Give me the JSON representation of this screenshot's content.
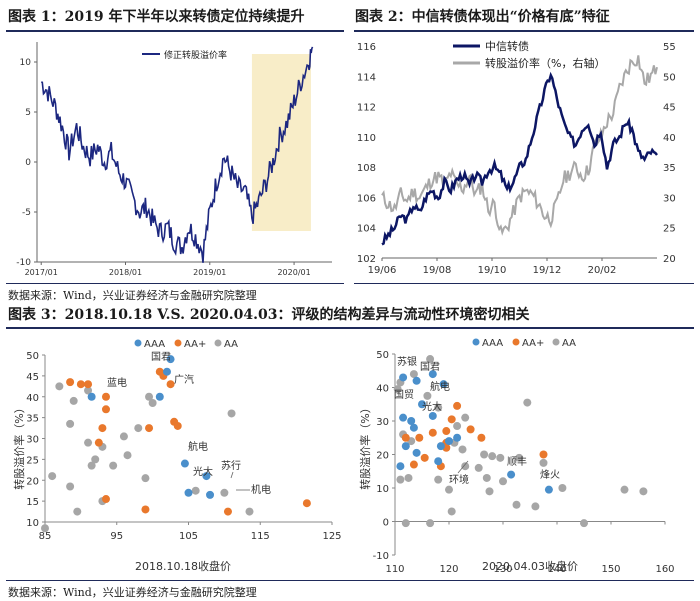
{
  "figure1": {
    "title": "图表 1：2019 年下半年以来转债定位持续提升",
    "chart_data": {
      "type": "line",
      "title": "",
      "legend": [
        "修正转股溢价率"
      ],
      "x_ticks": [
        "2017/01",
        "2018/01",
        "2019/01",
        "2020/01"
      ],
      "y_ticks": [
        "10",
        "5",
        "0",
        "-5",
        "-10"
      ],
      "ylim": [
        -10,
        12
      ],
      "highlight_period": [
        "2019/07",
        "2020/03"
      ],
      "color": "#1c2780",
      "highlight_color": "#f8edc8",
      "series": [
        {
          "name": "修正转股溢价率",
          "x": [
            2017.0,
            2017.08,
            2017.17,
            2017.25,
            2017.33,
            2017.42,
            2017.5,
            2017.58,
            2017.67,
            2017.75,
            2017.83,
            2017.92,
            2018.0,
            2018.08,
            2018.17,
            2018.25,
            2018.33,
            2018.42,
            2018.5,
            2018.58,
            2018.67,
            2018.75,
            2018.83,
            2018.92,
            2019.0,
            2019.08,
            2019.17,
            2019.25,
            2019.33,
            2019.42,
            2019.5,
            2019.58,
            2019.67,
            2019.75,
            2019.83,
            2019.92,
            2020.0,
            2020.08,
            2020.17,
            2020.22
          ],
          "values": [
            8.0,
            7.0,
            5.5,
            3.5,
            1.0,
            3.5,
            1.5,
            0.5,
            1.5,
            0.0,
            1.0,
            -1.0,
            -2.0,
            -3.5,
            -5.0,
            -4.5,
            -6.0,
            -7.0,
            -6.5,
            -8.0,
            -8.5,
            -6.5,
            -7.5,
            -9.0,
            -5.0,
            -2.0,
            0.5,
            -1.0,
            -2.5,
            -3.0,
            -5.5,
            -4.0,
            -2.0,
            0.0,
            2.5,
            4.0,
            6.0,
            8.0,
            10.0,
            11.5
          ]
        }
      ]
    }
  },
  "figure2": {
    "title": "图表 2：中信转债体现出“价格有底”特征",
    "chart_data": {
      "type": "line",
      "legend": [
        "中信转债",
        "转股溢价率（%，右轴）"
      ],
      "x_ticks": [
        "19/06",
        "19/08",
        "19/10",
        "19/12",
        "20/02"
      ],
      "y_left_ticks": [
        "116",
        "114",
        "112",
        "110",
        "108",
        "106",
        "104",
        "102"
      ],
      "y_right_ticks": [
        "55",
        "50",
        "45",
        "40",
        "35",
        "30",
        "25",
        "20"
      ],
      "ylim_left": [
        102,
        116
      ],
      "ylim_right": [
        20,
        55
      ],
      "colors": [
        "#0c1664",
        "#a8a8a8"
      ],
      "series": [
        {
          "name": "中信转债",
          "axis": "left",
          "x": [
            0,
            0.25,
            0.5,
            0.75,
            1.0,
            1.25,
            1.5,
            1.75,
            2.0,
            2.25,
            2.5,
            2.75,
            3.0,
            3.25,
            3.5,
            3.75,
            4.0,
            4.25,
            4.5,
            4.75,
            5.0,
            5.25,
            5.5,
            5.75,
            6.0,
            6.25,
            6.5,
            6.75,
            7.0,
            7.25,
            7.5,
            7.75,
            8.0,
            8.25,
            8.5,
            8.75,
            9.0,
            9.25,
            9.5,
            9.75,
            10.0,
            10.25,
            10.5,
            10.75,
            11.0
          ],
          "values": [
            103.0,
            103.5,
            104.0,
            104.8,
            104.5,
            105.5,
            105.0,
            106.0,
            106.5,
            106.0,
            107.0,
            106.5,
            107.2,
            107.5,
            106.8,
            107.5,
            107.0,
            107.8,
            108.0,
            107.5,
            106.5,
            107.0,
            108.0,
            108.5,
            110.0,
            111.5,
            113.0,
            114.2,
            112.5,
            111.0,
            110.0,
            109.5,
            110.5,
            111.0,
            109.5,
            110.5,
            108.0,
            109.5,
            110.0,
            111.0,
            110.5,
            109.0,
            108.5,
            109.0,
            108.8
          ]
        },
        {
          "name": "转股溢价率（%，右轴）",
          "axis": "right",
          "x": [
            0,
            0.25,
            0.5,
            0.75,
            1.0,
            1.25,
            1.5,
            1.75,
            2.0,
            2.25,
            2.5,
            2.75,
            3.0,
            3.25,
            3.5,
            3.75,
            4.0,
            4.25,
            4.5,
            4.75,
            5.0,
            5.25,
            5.5,
            5.75,
            6.0,
            6.25,
            6.5,
            6.75,
            7.0,
            7.25,
            7.5,
            7.75,
            8.0,
            8.25,
            8.5,
            8.75,
            9.0,
            9.25,
            9.5,
            9.75,
            10.0,
            10.25,
            10.5,
            10.75,
            11.0
          ],
          "values": [
            30.0,
            29.0,
            28.0,
            30.5,
            29.5,
            31.0,
            30.0,
            31.5,
            33.0,
            33.5,
            32.0,
            34.0,
            32.0,
            31.5,
            33.5,
            30.5,
            32.0,
            28.0,
            29.0,
            24.0,
            25.0,
            27.5,
            30.0,
            31.0,
            30.5,
            29.0,
            27.0,
            26.5,
            29.0,
            33.0,
            34.0,
            35.0,
            33.5,
            34.5,
            38.5,
            40.0,
            42.5,
            44.0,
            48.0,
            50.5,
            52.5,
            53.0,
            49.0,
            50.0,
            51.5
          ]
        }
      ]
    }
  },
  "figure3": {
    "title": "图表 3：2018.10.18 V.S. 2020.04.03：评级的结构差异与流动性环境密切相关",
    "legend": [
      "AAA",
      "AA+",
      "AA"
    ],
    "colors": {
      "AAA": "#4a8fcb",
      "AA+": "#e9782c",
      "AA": "#a6a6a6"
    },
    "left": {
      "chart_data": {
        "type": "scatter",
        "xlabel": "2018.10.18收盘价",
        "ylabel": "转股溢价率（%）",
        "x_ticks": [
          "85",
          "95",
          "105",
          "115",
          "125"
        ],
        "y_ticks": [
          "50",
          "45",
          "40",
          "35",
          "30",
          "25",
          "20",
          "15",
          "10"
        ],
        "xlim": [
          85,
          125
        ],
        "ylim": [
          10,
          50
        ],
        "series": [
          {
            "name": "AAA",
            "points": [
              [
                102.5,
                49.0
              ],
              [
                102.0,
                46.0
              ],
              [
                91.5,
                40.0
              ],
              [
                101.0,
                40.0
              ],
              [
                104.5,
                24.0
              ],
              [
                105.0,
                17.0
              ],
              [
                107.5,
                21.0
              ],
              [
                108.0,
                16.5
              ]
            ]
          },
          {
            "name": "AA+",
            "points": [
              [
                88.5,
                43.5
              ],
              [
                90.0,
                43.0
              ],
              [
                91.0,
                43.0
              ],
              [
                93.5,
                40.0
              ],
              [
                93.5,
                37.0
              ],
              [
                93.0,
                32.5
              ],
              [
                92.5,
                29.0
              ],
              [
                101.0,
                46.0
              ],
              [
                101.5,
                45.0
              ],
              [
                102.5,
                43.0
              ],
              [
                103.0,
                34.0
              ],
              [
                103.5,
                33.0
              ],
              [
                99.5,
                32.5
              ],
              [
                93.5,
                15.5
              ],
              [
                99.0,
                13.0
              ],
              [
                110.5,
                12.5
              ],
              [
                121.5,
                14.5
              ]
            ]
          },
          {
            "name": "AA",
            "points": [
              [
                87.0,
                42.5
              ],
              [
                89.0,
                39.0
              ],
              [
                91.0,
                41.5
              ],
              [
                88.5,
                33.5
              ],
              [
                91.0,
                29.0
              ],
              [
                93.0,
                28.0
              ],
              [
                96.0,
                30.5
              ],
              [
                98.0,
                32.5
              ],
              [
                99.5,
                40.0
              ],
              [
                100.0,
                38.5
              ],
              [
                96.5,
                26.0
              ],
              [
                92.0,
                25.0
              ],
              [
                91.5,
                23.5
              ],
              [
                94.5,
                23.5
              ],
              [
                86.0,
                21.0
              ],
              [
                88.5,
                18.5
              ],
              [
                99.0,
                20.5
              ],
              [
                93.0,
                15.0
              ],
              [
                111.0,
                36.0
              ],
              [
                106.0,
                17.5
              ],
              [
                110.0,
                17.0
              ],
              [
                113.5,
                12.5
              ],
              [
                89.5,
                12.5
              ],
              [
                85.0,
                8.5
              ]
            ]
          }
        ],
        "annotations": [
          "国君",
          "蓝电",
          "广汽",
          "航电",
          "光大",
          "苏行",
          "机电"
        ]
      }
    },
    "right": {
      "chart_data": {
        "type": "scatter",
        "xlabel": "2020.04.03收盘价",
        "ylabel": "转股溢价率（%）",
        "x_ticks": [
          "110",
          "120",
          "130",
          "140",
          "150",
          "160"
        ],
        "y_ticks": [
          "50",
          "40",
          "30",
          "20",
          "10",
          "0",
          "-10"
        ],
        "xlim": [
          110,
          160
        ],
        "ylim": [
          -10,
          50
        ],
        "series": [
          {
            "name": "AAA",
            "points": [
              [
                111.5,
                43.0
              ],
              [
                114.0,
                42.0
              ],
              [
                117.0,
                44.0
              ],
              [
                119.0,
                41.0
              ],
              [
                115.0,
                35.0
              ],
              [
                117.0,
                31.5
              ],
              [
                113.0,
                30.0
              ],
              [
                111.5,
                31.0
              ],
              [
                113.5,
                28.0
              ],
              [
                120.0,
                24.0
              ],
              [
                118.5,
                22.5
              ],
              [
                121.5,
                25.0
              ],
              [
                118.0,
                18.0
              ],
              [
                112.0,
                22.5
              ],
              [
                114.0,
                20.5
              ],
              [
                111.0,
                16.5
              ],
              [
                131.5,
                14.0
              ],
              [
                138.5,
                9.5
              ]
            ]
          },
          {
            "name": "AA+",
            "points": [
              [
                112.0,
                25.0
              ],
              [
                114.5,
                25.0
              ],
              [
                117.0,
                26.5
              ],
              [
                119.5,
                27.0
              ],
              [
                120.5,
                30.5
              ],
              [
                121.5,
                34.5
              ],
              [
                119.5,
                23.5
              ],
              [
                124.0,
                27.5
              ],
              [
                126.0,
                25.0
              ],
              [
                113.5,
                17.0
              ],
              [
                115.5,
                19.0
              ],
              [
                119.5,
                22.0
              ],
              [
                137.5,
                20.0
              ],
              [
                118.5,
                16.5
              ]
            ]
          },
          {
            "name": "AA",
            "points": [
              [
                111.0,
                41.5
              ],
              [
                110.5,
                39.5
              ],
              [
                113.5,
                44.0
              ],
              [
                116.5,
                48.5
              ],
              [
                116.0,
                37.5
              ],
              [
                121.5,
                28.5
              ],
              [
                123.0,
                31.0
              ],
              [
                118.0,
                34.0
              ],
              [
                111.5,
                26.0
              ],
              [
                113.0,
                24.0
              ],
              [
                121.0,
                23.5
              ],
              [
                122.5,
                21.5
              ],
              [
                126.5,
                20.0
              ],
              [
                128.0,
                19.5
              ],
              [
                129.5,
                19.0
              ],
              [
                123.0,
                16.5
              ],
              [
                125.5,
                16.0
              ],
              [
                127.0,
                13.0
              ],
              [
                130.0,
                12.0
              ],
              [
                134.5,
                35.5
              ],
              [
                133.0,
                19.0
              ],
              [
                137.5,
                17.5
              ],
              [
                141.0,
                10.0
              ],
              [
                118.0,
                12.5
              ],
              [
                120.0,
                9.5
              ],
              [
                127.5,
                9.0
              ],
              [
                132.5,
                5.0
              ],
              [
                136.0,
                4.5
              ],
              [
                152.5,
                9.5
              ],
              [
                156.0,
                9.0
              ],
              [
                145.0,
                -0.5
              ],
              [
                112.0,
                -0.5
              ],
              [
                116.5,
                -0.5
              ],
              [
                111.0,
                12.5
              ],
              [
                112.5,
                13.0
              ],
              [
                120.5,
                3.0
              ]
            ]
          }
        ],
        "annotations": [
          "苏银",
          "国君",
          "航电",
          "国贸",
          "光大",
          "顺丰",
          "环境",
          "烽火"
        ]
      }
    }
  },
  "source_text": "数据来源：Wind，兴业证券经济与金融研究院整理"
}
